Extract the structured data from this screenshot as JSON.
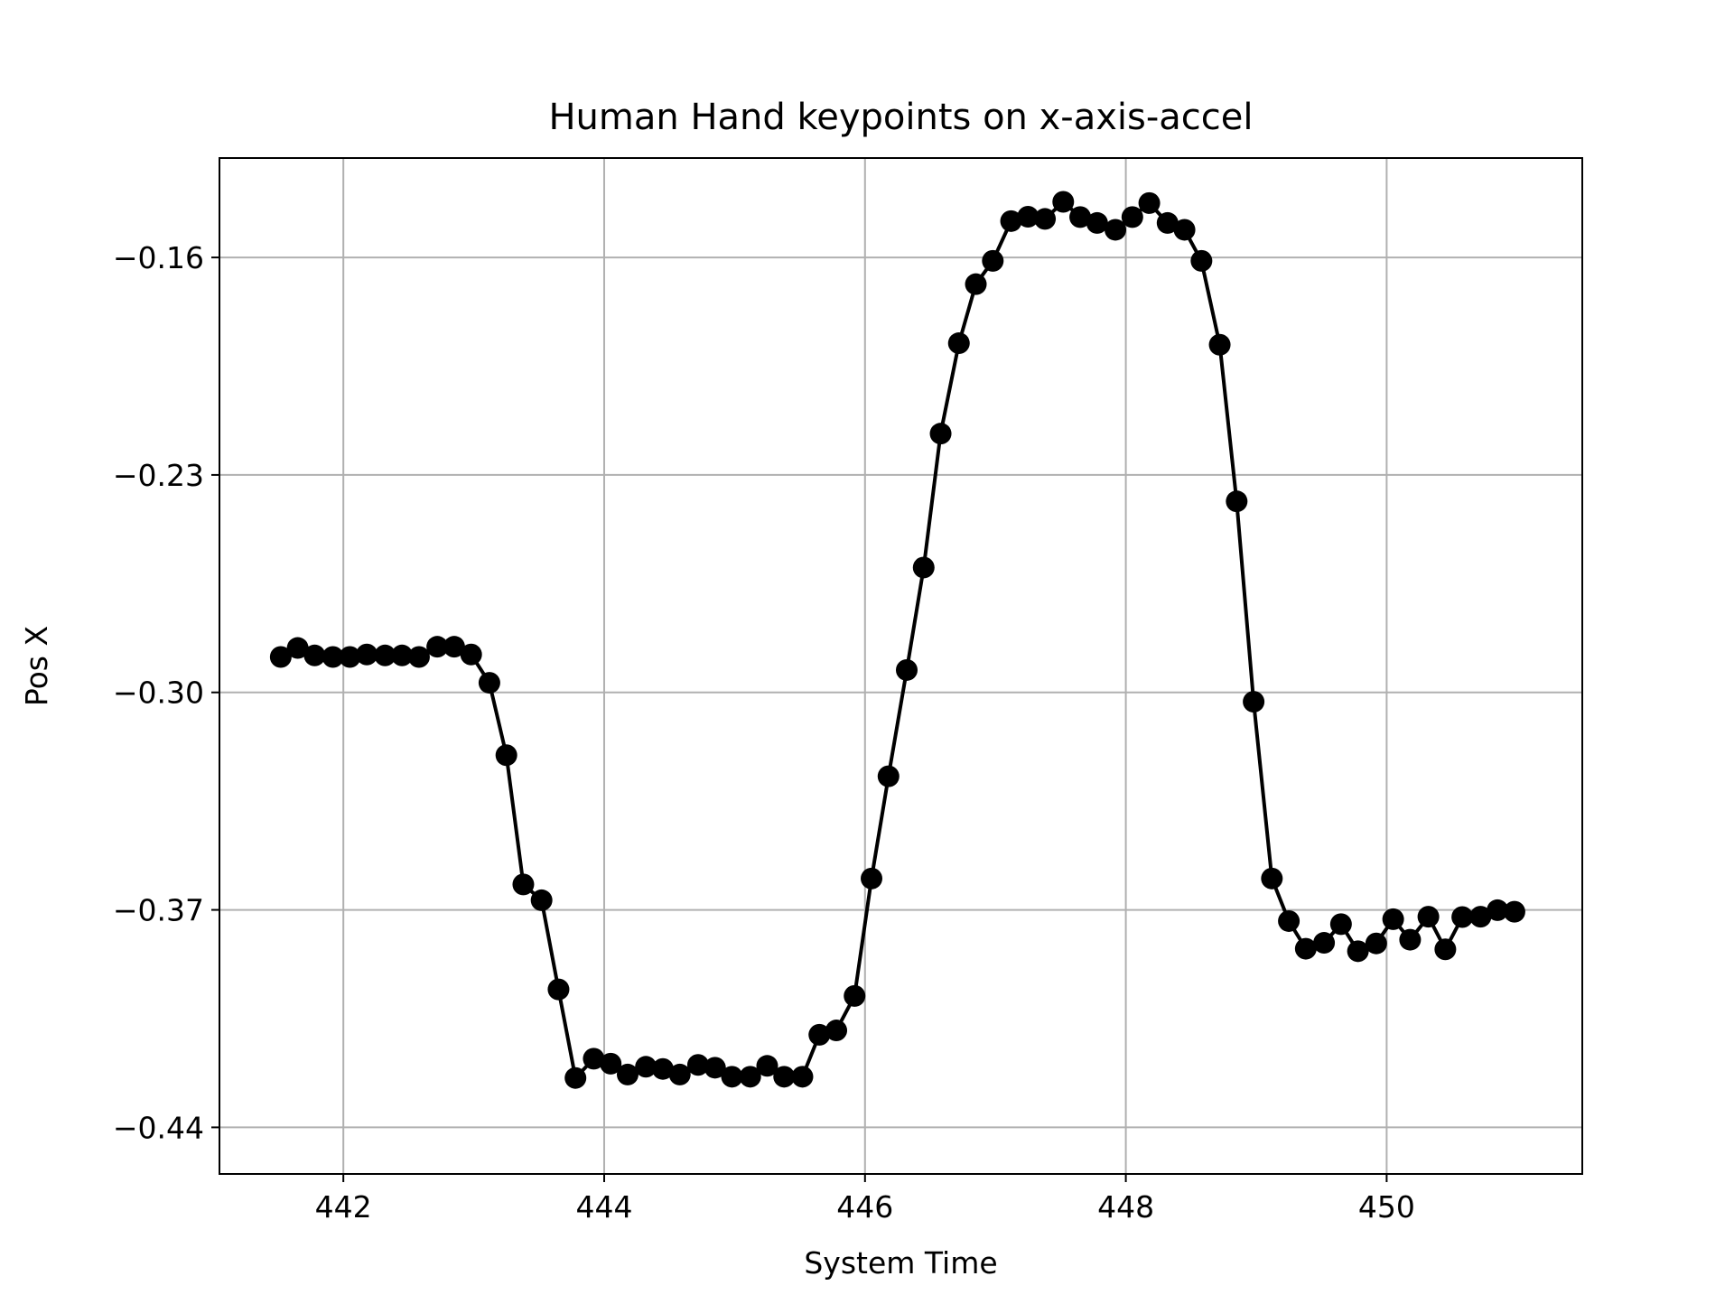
{
  "chart_data": {
    "type": "line",
    "title": "Human Hand keypoints on x-axis-accel",
    "xlabel": "System Time",
    "ylabel": "Pos X",
    "xlim": [
      441.05,
      451.5
    ],
    "ylim": [
      -0.455,
      -0.128
    ],
    "xticks": [
      442,
      444,
      446,
      448,
      450
    ],
    "xtick_labels": [
      "442",
      "444",
      "446",
      "448",
      "450"
    ],
    "yticks": [
      -0.16,
      -0.23,
      -0.3,
      -0.37,
      -0.44
    ],
    "ytick_labels": [
      "−0.16",
      "−0.23",
      "−0.30",
      "−0.37",
      "−0.44"
    ],
    "grid": true,
    "legend": "none",
    "series": [
      {
        "color": "#000000",
        "marker": "circle",
        "x": [
          441.52,
          441.65,
          441.78,
          441.92,
          442.05,
          442.18,
          442.32,
          442.45,
          442.58,
          442.72,
          442.85,
          442.98,
          443.12,
          443.25,
          443.38,
          443.52,
          443.65,
          443.78,
          443.92,
          444.05,
          444.18,
          444.32,
          444.45,
          444.58,
          444.72,
          444.85,
          444.98,
          445.12,
          445.25,
          445.38,
          445.52,
          445.65,
          445.78,
          445.92,
          446.05,
          446.18,
          446.32,
          446.45,
          446.58,
          446.72,
          446.85,
          446.98,
          447.12,
          447.25,
          447.38,
          447.52,
          447.65,
          447.78,
          447.92,
          448.05,
          448.18,
          448.32,
          448.45,
          448.58,
          448.72,
          448.85,
          448.98,
          449.12,
          449.25,
          449.38,
          449.52,
          449.65,
          449.78,
          449.92,
          450.05,
          450.18,
          450.32,
          450.45,
          450.58,
          450.72,
          450.85,
          450.98
        ],
        "y": [
          -0.2886,
          -0.2857,
          -0.2881,
          -0.2886,
          -0.2886,
          -0.2878,
          -0.2881,
          -0.2881,
          -0.2886,
          -0.2853,
          -0.2853,
          -0.2878,
          -0.2969,
          -0.3202,
          -0.3618,
          -0.3669,
          -0.3956,
          -0.4241,
          -0.4179,
          -0.4195,
          -0.423,
          -0.4205,
          -0.4212,
          -0.423,
          -0.4199,
          -0.4208,
          -0.4237,
          -0.4237,
          -0.4202,
          -0.4237,
          -0.4237,
          -0.4102,
          -0.4088,
          -0.3977,
          -0.3599,
          -0.327,
          -0.2928,
          -0.2598,
          -0.2167,
          -0.1876,
          -0.1686,
          -0.1611,
          -0.1483,
          -0.1469,
          -0.1476,
          -0.1421,
          -0.147,
          -0.1489,
          -0.1511,
          -0.147,
          -0.1425,
          -0.1489,
          -0.1511,
          -0.1611,
          -0.1881,
          -0.2385,
          -0.303,
          -0.3599,
          -0.3736,
          -0.3825,
          -0.3806,
          -0.3746,
          -0.3833,
          -0.3808,
          -0.373,
          -0.3796,
          -0.3722,
          -0.3827,
          -0.3723,
          -0.3722,
          -0.3701,
          -0.3706
        ]
      }
    ]
  }
}
